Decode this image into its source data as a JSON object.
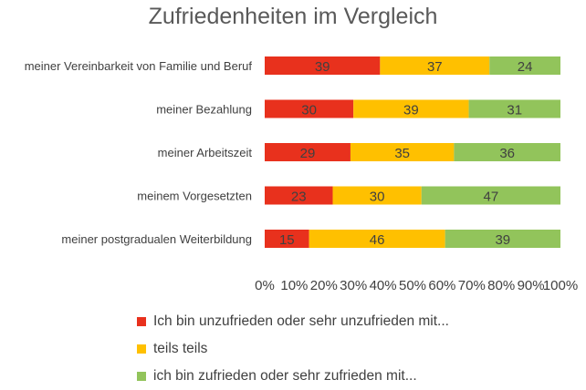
{
  "chart_data": {
    "type": "bar",
    "orientation": "horizontal",
    "stacked": "percent",
    "title": "Zufriedenheiten im Vergleich",
    "categories": [
      "meiner Vereinbarkeit von Familie und Beruf",
      "meiner Bezahlung",
      "meiner Arbeitszeit",
      "meinem Vorgesetzten",
      "meiner postgradualen Weiterbildung"
    ],
    "series": [
      {
        "name": "Ich bin unzufrieden oder sehr unzufrieden mit...",
        "color": "#e8311d",
        "values": [
          39,
          30,
          29,
          23,
          15
        ]
      },
      {
        "name": "teils teils",
        "color": "#ffc000",
        "values": [
          37,
          39,
          35,
          30,
          46
        ]
      },
      {
        "name": "ich bin zufrieden oder sehr zufrieden mit...",
        "color": "#92c45b",
        "values": [
          24,
          31,
          36,
          47,
          39
        ]
      }
    ],
    "x_ticks": [
      "0%",
      "10%",
      "20%",
      "30%",
      "40%",
      "50%",
      "60%",
      "70%",
      "80%",
      "90%",
      "100%"
    ],
    "xlim": [
      0,
      100
    ],
    "grid": false,
    "legend_position": "bottom"
  }
}
